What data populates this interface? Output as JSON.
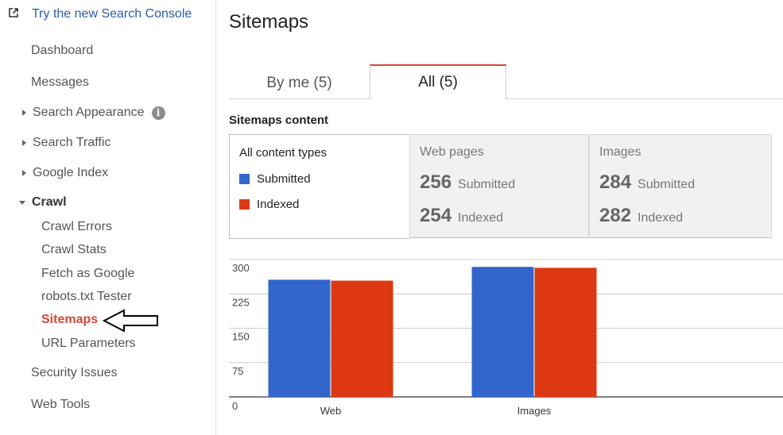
{
  "sidebar": {
    "new_console_label": "Try the new Search Console",
    "items": [
      {
        "label": "Dashboard"
      },
      {
        "label": "Messages"
      },
      {
        "label": "Search Appearance"
      },
      {
        "label": "Search Traffic"
      },
      {
        "label": "Google Index"
      },
      {
        "label": "Crawl"
      },
      {
        "label": "Crawl Errors"
      },
      {
        "label": "Crawl Stats"
      },
      {
        "label": "Fetch as Google"
      },
      {
        "label": "robots.txt Tester"
      },
      {
        "label": "Sitemaps"
      },
      {
        "label": "URL Parameters"
      },
      {
        "label": "Security Issues"
      },
      {
        "label": "Web Tools"
      }
    ],
    "info_icon_glyph": "i"
  },
  "header": {
    "title": "Sitemaps"
  },
  "tabs": [
    {
      "label": "By me (5)",
      "selected": false
    },
    {
      "label": "All (5)",
      "selected": true
    }
  ],
  "content": {
    "heading": "Sitemaps content",
    "legend": {
      "title": "All content types",
      "submitted_label": "Submitted",
      "indexed_label": "Indexed"
    },
    "web": {
      "label": "Web pages",
      "submitted_count": "256",
      "submitted_label": "Submitted",
      "indexed_count": "254",
      "indexed_label": "Indexed"
    },
    "images": {
      "label": "Images",
      "submitted_count": "284",
      "submitted_label": "Submitted",
      "indexed_count": "282",
      "indexed_label": "Indexed"
    }
  },
  "colors": {
    "submitted": "#3366cc",
    "indexed": "#dc3912",
    "accent": "#d14836",
    "link": "#2a5db0"
  },
  "chart_data": {
    "type": "bar",
    "categories": [
      "Web",
      "Images"
    ],
    "series": [
      {
        "name": "Submitted",
        "values": [
          256,
          284
        ]
      },
      {
        "name": "Indexed",
        "values": [
          254,
          282
        ]
      }
    ],
    "yticks": [
      0,
      75,
      150,
      225,
      300
    ],
    "ylim": [
      0,
      300
    ],
    "grid": true
  }
}
